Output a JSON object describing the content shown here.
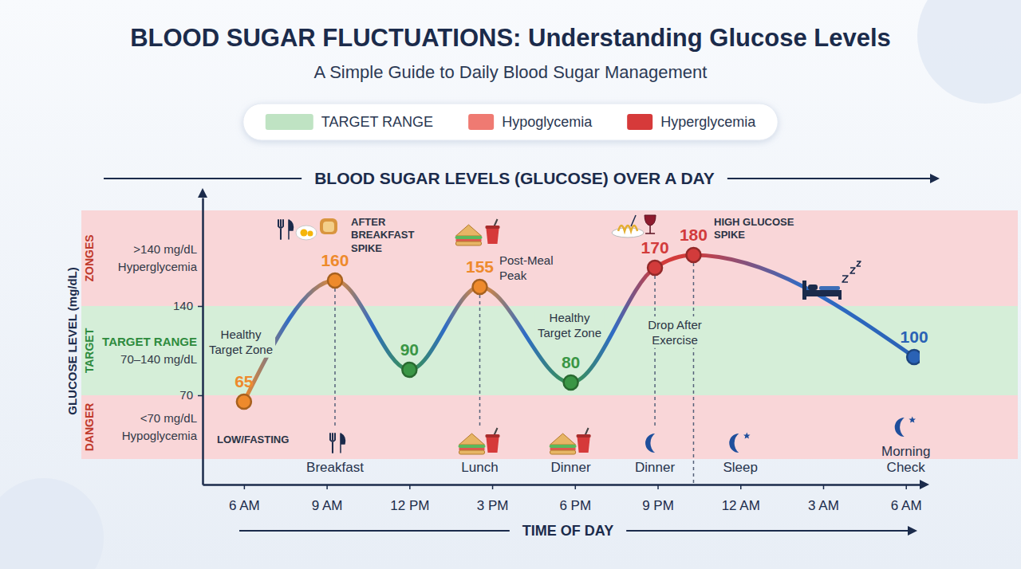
{
  "chart_data": {
    "type": "line",
    "title": "BLOOD SUGAR FLUCTUATIONS: Understanding Glucose Levels",
    "subtitle": "A Simple Guide to Daily Blood Sugar Management",
    "plot_title": "BLOOD SUGAR LEVELS (GLUCOSE) OVER A DAY",
    "x_label": "TIME OF DAY",
    "y_label": "GLUCOSE LEVEL (mg/dL)",
    "legend": "top",
    "legend_entries": [
      {
        "name": "TARGET RANGE",
        "color": "#bfe3c3"
      },
      {
        "name": "Hypoglycemia",
        "color": "#ef7a72"
      },
      {
        "name": "Hyperglycemia",
        "color": "#d63a3a"
      }
    ],
    "zones": [
      {
        "name": "ZONGES",
        "lines": [
          ">140 mg/dL",
          "Hyperglycemia"
        ],
        "from": 140,
        "to": 215,
        "color": "#f9d6d8"
      },
      {
        "name": "TARGET",
        "lines": [
          "TARGET RANGE",
          "70–140 mg/dL"
        ],
        "from": 70,
        "to": 140,
        "color": "#d5eed8"
      },
      {
        "name": "DANGER",
        "lines": [
          "<70 mg/dL",
          "Hypoglycemia"
        ],
        "from": 20,
        "to": 70,
        "color": "#f9d6d8"
      }
    ],
    "x": [
      6,
      9.3,
      12,
      14.55,
      17.85,
      20.9,
      22.3,
      30.3
    ],
    "values": [
      65,
      160,
      90,
      155,
      80,
      170,
      180,
      100
    ],
    "colors": [
      "#ee8a2c",
      "#ee8a2c",
      "#3a9645",
      "#ee8a2c",
      "#3a9645",
      "#d23b3b",
      "#d23b3b",
      "#2a62b5"
    ],
    "data_labels": true,
    "grid": false,
    "xlim": [
      4.5,
      30.5
    ],
    "xticks": [
      {
        "value": 6,
        "label": "6 AM"
      },
      {
        "value": 9,
        "label": "9 AM"
      },
      {
        "value": 12,
        "label": "12 PM"
      },
      {
        "value": 15,
        "label": "3 PM"
      },
      {
        "value": 18,
        "label": "6 PM"
      },
      {
        "value": 21,
        "label": "9 PM"
      },
      {
        "value": 24,
        "label": "12 AM"
      },
      {
        "value": 27,
        "label": "3 AM"
      },
      {
        "value": 30,
        "label": "6 AM"
      }
    ],
    "ylim": [
      0,
      225
    ],
    "yticks": [
      70,
      140
    ],
    "annotations": [
      "AFTER BREAKFAST SPIKE",
      "Post-Meal Peak",
      "HIGH GLUCOSE SPIKE",
      "Healthy Target Zone",
      "Healthy Target Zone",
      "Drop After Exercise",
      "LOW/FASTING"
    ],
    "events": [
      {
        "label": "Breakfast",
        "x": 9.3
      },
      {
        "label": "Lunch",
        "x": 14.55
      },
      {
        "label": "Dinner",
        "x": 17.85
      },
      {
        "label": "Dinner",
        "x": 20.9
      },
      {
        "label": "Sleep",
        "x": 24
      },
      {
        "label": "Morning Check",
        "x": 30
      }
    ]
  }
}
